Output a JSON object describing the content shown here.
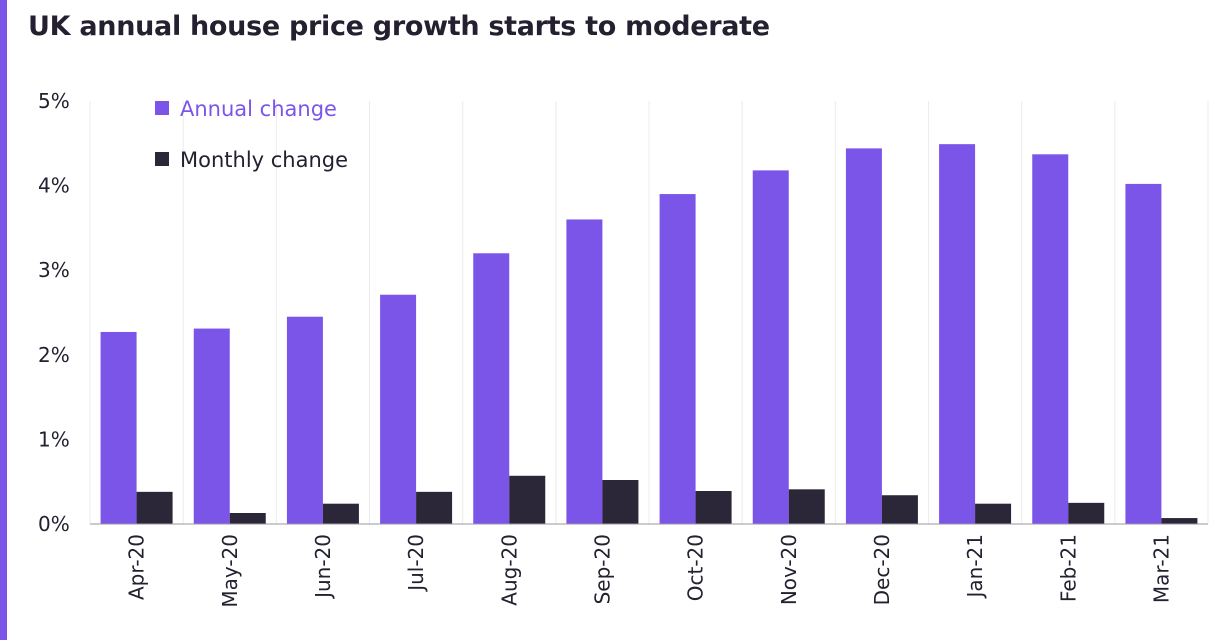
{
  "title": "UK annual house price growth starts to moderate",
  "colors": {
    "accent_bar": "#7b55e8",
    "annual": "#7b55e8",
    "monthly": "#2b2638",
    "text": "#24202f",
    "grid": "#ececec"
  },
  "chart_data": {
    "type": "bar",
    "categories": [
      "Apr-20",
      "May-20",
      "Jun-20",
      "Jul-20",
      "Aug-20",
      "Sep-20",
      "Oct-20",
      "Nov-20",
      "Dec-20",
      "Jan-21",
      "Feb-21",
      "Mar-21"
    ],
    "series": [
      {
        "name": "Annual change",
        "values": [
          2.27,
          2.31,
          2.45,
          2.71,
          3.2,
          3.6,
          3.9,
          4.18,
          4.44,
          4.49,
          4.37,
          4.02
        ]
      },
      {
        "name": "Monthly change",
        "values": [
          0.38,
          0.13,
          0.24,
          0.38,
          0.57,
          0.52,
          0.39,
          0.41,
          0.34,
          0.24,
          0.25,
          0.07
        ]
      }
    ],
    "yticks": [
      "0%",
      "1%",
      "2%",
      "3%",
      "4%",
      "5%"
    ],
    "ylim": [
      0,
      5
    ],
    "xlabel": "",
    "ylabel": "",
    "grid": "vertical",
    "legend_position": "top-left"
  }
}
